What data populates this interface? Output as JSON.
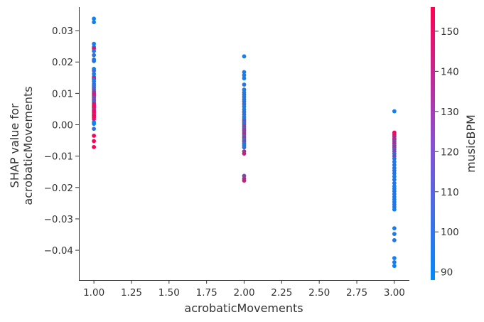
{
  "chart_data": {
    "type": "scatter",
    "xlabel": "acrobaticMovements",
    "ylabel_lines": [
      "SHAP value for",
      "acrobaticMovements"
    ],
    "xlim": [
      0.9,
      3.1
    ],
    "ylim": [
      -0.0495,
      0.0375
    ],
    "xticks": [
      1.0,
      1.25,
      1.5,
      1.75,
      2.0,
      2.25,
      2.5,
      2.75,
      3.0
    ],
    "xtick_labels": [
      "1.00",
      "1.25",
      "1.50",
      "1.75",
      "2.00",
      "2.25",
      "2.50",
      "2.75",
      "3.00"
    ],
    "yticks": [
      0.03,
      0.02,
      0.01,
      0.0,
      -0.01,
      -0.02,
      -0.03,
      -0.04
    ],
    "ytick_labels": [
      "0.03",
      "0.02",
      "0.01",
      "0.00",
      "−0.01",
      "−0.02",
      "−0.03",
      "−0.04"
    ],
    "colorbar": {
      "label": "musicBPM",
      "range": [
        88,
        156
      ],
      "ticks": [
        90,
        100,
        110,
        120,
        130,
        140,
        150
      ],
      "tick_labels": [
        "90",
        "100",
        "110",
        "120",
        "130",
        "140",
        "150"
      ],
      "colors": [
        "#008afb",
        "#ff0052"
      ]
    },
    "points": [
      {
        "x": 1,
        "y": 0.0338,
        "c": 92
      },
      {
        "x": 1,
        "y": 0.0327,
        "c": 93
      },
      {
        "x": 1,
        "y": 0.0258,
        "c": 95
      },
      {
        "x": 1,
        "y": 0.0248,
        "c": 96
      },
      {
        "x": 1,
        "y": 0.0243,
        "c": 145
      },
      {
        "x": 1,
        "y": 0.0235,
        "c": 98
      },
      {
        "x": 1,
        "y": 0.0222,
        "c": 100
      },
      {
        "x": 1,
        "y": 0.0208,
        "c": 97
      },
      {
        "x": 1,
        "y": 0.0203,
        "c": 99
      },
      {
        "x": 1,
        "y": 0.0178,
        "c": 94
      },
      {
        "x": 1,
        "y": 0.0172,
        "c": 102
      },
      {
        "x": 1,
        "y": 0.0162,
        "c": 96
      },
      {
        "x": 1,
        "y": 0.0153,
        "c": 98
      },
      {
        "x": 1,
        "y": 0.0148,
        "c": 150
      },
      {
        "x": 1,
        "y": 0.0144,
        "c": 101
      },
      {
        "x": 1,
        "y": 0.0138,
        "c": 95
      },
      {
        "x": 1,
        "y": 0.013,
        "c": 103
      },
      {
        "x": 1,
        "y": 0.0124,
        "c": 99
      },
      {
        "x": 1,
        "y": 0.0118,
        "c": 105
      },
      {
        "x": 1,
        "y": 0.0112,
        "c": 108
      },
      {
        "x": 1,
        "y": 0.0106,
        "c": 120
      },
      {
        "x": 1,
        "y": 0.0101,
        "c": 128
      },
      {
        "x": 1,
        "y": 0.0097,
        "c": 135
      },
      {
        "x": 1,
        "y": 0.0092,
        "c": 142
      },
      {
        "x": 1,
        "y": 0.0087,
        "c": 112
      },
      {
        "x": 1,
        "y": 0.0082,
        "c": 118
      },
      {
        "x": 1,
        "y": 0.0077,
        "c": 125
      },
      {
        "x": 1,
        "y": 0.0073,
        "c": 100
      },
      {
        "x": 1,
        "y": 0.0068,
        "c": 138
      },
      {
        "x": 1,
        "y": 0.0063,
        "c": 145
      },
      {
        "x": 1,
        "y": 0.0058,
        "c": 150
      },
      {
        "x": 1,
        "y": 0.0054,
        "c": 152
      },
      {
        "x": 1,
        "y": 0.0049,
        "c": 132
      },
      {
        "x": 1,
        "y": 0.0044,
        "c": 148
      },
      {
        "x": 1,
        "y": 0.0039,
        "c": 155
      },
      {
        "x": 1,
        "y": 0.0034,
        "c": 140
      },
      {
        "x": 1,
        "y": 0.0029,
        "c": 150
      },
      {
        "x": 1,
        "y": 0.0024,
        "c": 153
      },
      {
        "x": 1,
        "y": 0.0018,
        "c": 146
      },
      {
        "x": 1,
        "y": 0.0008,
        "c": 95
      },
      {
        "x": 1,
        "y": 0.0003,
        "c": 92
      },
      {
        "x": 1,
        "y": -0.0013,
        "c": 101
      },
      {
        "x": 1,
        "y": -0.0035,
        "c": 152
      },
      {
        "x": 1,
        "y": -0.0052,
        "c": 154
      },
      {
        "x": 1,
        "y": -0.0071,
        "c": 153
      },
      {
        "x": 2,
        "y": 0.0218,
        "c": 92
      },
      {
        "x": 2,
        "y": 0.0168,
        "c": 94
      },
      {
        "x": 2,
        "y": 0.0158,
        "c": 96
      },
      {
        "x": 2,
        "y": 0.0148,
        "c": 93
      },
      {
        "x": 2,
        "y": 0.0128,
        "c": 98
      },
      {
        "x": 2,
        "y": 0.0112,
        "c": 95
      },
      {
        "x": 2,
        "y": 0.0103,
        "c": 97
      },
      {
        "x": 2,
        "y": 0.0096,
        "c": 99
      },
      {
        "x": 2,
        "y": 0.0089,
        "c": 96
      },
      {
        "x": 2,
        "y": 0.0081,
        "c": 100
      },
      {
        "x": 2,
        "y": 0.0074,
        "c": 98
      },
      {
        "x": 2,
        "y": 0.0066,
        "c": 102
      },
      {
        "x": 2,
        "y": 0.0058,
        "c": 95
      },
      {
        "x": 2,
        "y": 0.0049,
        "c": 97
      },
      {
        "x": 2,
        "y": 0.0041,
        "c": 99
      },
      {
        "x": 2,
        "y": 0.0033,
        "c": 101
      },
      {
        "x": 2,
        "y": 0.0025,
        "c": 96
      },
      {
        "x": 2,
        "y": 0.0018,
        "c": 98
      },
      {
        "x": 2,
        "y": 0.0012,
        "c": 115
      },
      {
        "x": 2,
        "y": 0.0006,
        "c": 103
      },
      {
        "x": 2,
        "y": 0.0,
        "c": 108
      },
      {
        "x": 2,
        "y": -0.0006,
        "c": 125
      },
      {
        "x": 2,
        "y": -0.0012,
        "c": 112
      },
      {
        "x": 2,
        "y": -0.0018,
        "c": 130
      },
      {
        "x": 2,
        "y": -0.0024,
        "c": 118
      },
      {
        "x": 2,
        "y": -0.003,
        "c": 135
      },
      {
        "x": 2,
        "y": -0.0036,
        "c": 110
      },
      {
        "x": 2,
        "y": -0.0042,
        "c": 128
      },
      {
        "x": 2,
        "y": -0.0048,
        "c": 105
      },
      {
        "x": 2,
        "y": -0.0054,
        "c": 120
      },
      {
        "x": 2,
        "y": -0.006,
        "c": 100
      },
      {
        "x": 2,
        "y": -0.0066,
        "c": 97
      },
      {
        "x": 2,
        "y": -0.0072,
        "c": 99
      },
      {
        "x": 2,
        "y": -0.0085,
        "c": 130
      },
      {
        "x": 2,
        "y": -0.0092,
        "c": 138
      },
      {
        "x": 2,
        "y": -0.0163,
        "c": 122
      },
      {
        "x": 2,
        "y": -0.0172,
        "c": 132
      },
      {
        "x": 2,
        "y": -0.0178,
        "c": 140
      },
      {
        "x": 3,
        "y": 0.0043,
        "c": 94
      },
      {
        "x": 3,
        "y": -0.0025,
        "c": 152
      },
      {
        "x": 3,
        "y": -0.0031,
        "c": 145
      },
      {
        "x": 3,
        "y": -0.0037,
        "c": 140
      },
      {
        "x": 3,
        "y": -0.0043,
        "c": 135
      },
      {
        "x": 3,
        "y": -0.0048,
        "c": 128
      },
      {
        "x": 3,
        "y": -0.0054,
        "c": 120
      },
      {
        "x": 3,
        "y": -0.006,
        "c": 138
      },
      {
        "x": 3,
        "y": -0.0066,
        "c": 115
      },
      {
        "x": 3,
        "y": -0.0072,
        "c": 132
      },
      {
        "x": 3,
        "y": -0.0078,
        "c": 110
      },
      {
        "x": 3,
        "y": -0.0085,
        "c": 125
      },
      {
        "x": 3,
        "y": -0.0092,
        "c": 105
      },
      {
        "x": 3,
        "y": -0.01,
        "c": 118
      },
      {
        "x": 3,
        "y": -0.0108,
        "c": 100
      },
      {
        "x": 3,
        "y": -0.0118,
        "c": 97
      },
      {
        "x": 3,
        "y": -0.0128,
        "c": 99
      },
      {
        "x": 3,
        "y": -0.0138,
        "c": 96
      },
      {
        "x": 3,
        "y": -0.0146,
        "c": 101
      },
      {
        "x": 3,
        "y": -0.0155,
        "c": 98
      },
      {
        "x": 3,
        "y": -0.0165,
        "c": 95
      },
      {
        "x": 3,
        "y": -0.0175,
        "c": 97
      },
      {
        "x": 3,
        "y": -0.0186,
        "c": 99
      },
      {
        "x": 3,
        "y": -0.0196,
        "c": 96
      },
      {
        "x": 3,
        "y": -0.0204,
        "c": 94
      },
      {
        "x": 3,
        "y": -0.0212,
        "c": 98
      },
      {
        "x": 3,
        "y": -0.0221,
        "c": 100
      },
      {
        "x": 3,
        "y": -0.023,
        "c": 95
      },
      {
        "x": 3,
        "y": -0.0238,
        "c": 97
      },
      {
        "x": 3,
        "y": -0.0246,
        "c": 96
      },
      {
        "x": 3,
        "y": -0.0254,
        "c": 99
      },
      {
        "x": 3,
        "y": -0.0262,
        "c": 98
      },
      {
        "x": 3,
        "y": -0.027,
        "c": 94
      },
      {
        "x": 3,
        "y": -0.033,
        "c": 95
      },
      {
        "x": 3,
        "y": -0.0348,
        "c": 96
      },
      {
        "x": 3,
        "y": -0.0368,
        "c": 97
      },
      {
        "x": 3,
        "y": -0.0425,
        "c": 93
      },
      {
        "x": 3,
        "y": -0.0438,
        "c": 95
      },
      {
        "x": 3,
        "y": -0.045,
        "c": 92
      }
    ]
  }
}
